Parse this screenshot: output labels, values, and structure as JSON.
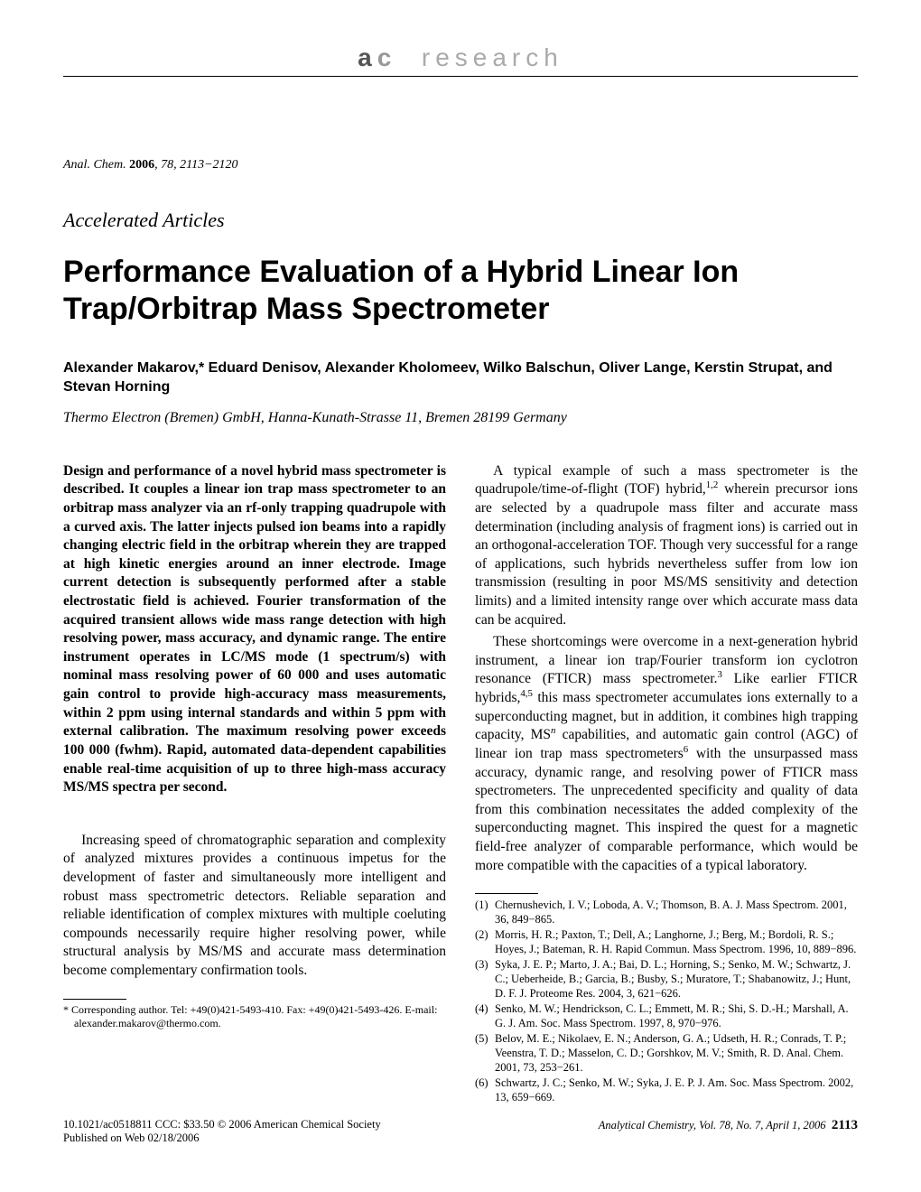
{
  "header": {
    "brand_a": "a",
    "brand_c": "c",
    "brand_research": "research"
  },
  "citation": {
    "journal": "Anal. Chem.",
    "year": "2006",
    "volume": "78",
    "pages": "2113−2120"
  },
  "section_label": "Accelerated Articles",
  "title": "Performance Evaluation of a Hybrid Linear Ion Trap/Orbitrap Mass Spectrometer",
  "authors": "Alexander Makarov,* Eduard Denisov, Alexander Kholomeev, Wilko Balschun, Oliver Lange, Kerstin Strupat, and Stevan Horning",
  "affiliation": "Thermo Electron (Bremen) GmbH, Hanna-Kunath-Strasse 11, Bremen 28199 Germany",
  "abstract": "Design and performance of a novel hybrid mass spectrometer is described. It couples a linear ion trap mass spectrometer to an orbitrap mass analyzer via an rf-only trapping quadrupole with a curved axis. The latter injects pulsed ion beams into a rapidly changing electric field in the orbitrap wherein they are trapped at high kinetic energies around an inner electrode. Image current detection is subsequently performed after a stable electrostatic field is achieved. Fourier transformation of the acquired transient allows wide mass range detection with high resolving power, mass accuracy, and dynamic range. The entire instrument operates in LC/MS mode (1 spectrum/s) with nominal mass resolving power of 60 000 and uses automatic gain control to provide high-accuracy mass measurements, within 2 ppm using internal standards and within 5 ppm with external calibration. The maximum resolving power exceeds 100 000 (fwhm). Rapid, automated data-dependent capabilities enable real-time acquisition of up to three high-mass accuracy MS/MS spectra per second.",
  "intro_para": "Increasing speed of chromatographic separation and complexity of analyzed mixtures provides a continuous impetus for the development of faster and simultaneously more intelligent and robust mass spectrometric detectors. Reliable separation and reliable identification of complex mixtures with multiple coeluting compounds necessarily require higher resolving power, while structural analysis by MS/MS and accurate mass determination become complementary confirmation tools.",
  "corresponding": "* Corresponding author. Tel: +49(0)421-5493-410. Fax: +49(0)421-5493-426. E-mail: alexander.makarov@thermo.com.",
  "right_p1_a": "A typical example of such a mass spectrometer is the quadrupole/time-of-flight (TOF) hybrid,",
  "right_p1_sup1": "1,2",
  "right_p1_b": " wherein precursor ions are selected by a quadrupole mass filter and accurate mass determination (including analysis of fragment ions) is carried out in an orthogonal-acceleration TOF. Though very successful for a range of applications, such hybrids nevertheless suffer from low ion transmission (resulting in poor MS/MS sensitivity and detection limits) and a limited intensity range over which accurate mass data can be acquired.",
  "right_p2_a": "These shortcomings were overcome in a next-generation hybrid instrument, a linear ion trap/Fourier transform ion cyclotron resonance (FTICR) mass spectrometer.",
  "right_p2_sup1": "3",
  "right_p2_b": " Like earlier FTICR hybrids,",
  "right_p2_sup2": "4,5",
  "right_p2_c": " this mass spectrometer accumulates ions externally to a superconducting magnet, but in addition, it combines high trapping capacity, MS",
  "right_p2_supn": "n",
  "right_p2_d": " capabilities, and automatic gain control (AGC) of linear ion trap mass spectrometers",
  "right_p2_sup3": "6",
  "right_p2_e": " with the unsurpassed mass accuracy, dynamic range, and resolving power of FTICR mass spectrometers. The unprecedented specificity and quality of data from this combination necessitates the added complexity of the superconducting magnet. This inspired the quest for a magnetic field-free analyzer of comparable performance, which would be more compatible with the capacities of a typical laboratory.",
  "refs": [
    {
      "n": "(1)",
      "t": "Chernushevich, I. V.; Loboda, A. V.; Thomson, B. A. J. Mass Spectrom. 2001, 36, 849−865."
    },
    {
      "n": "(2)",
      "t": "Morris, H. R.; Paxton, T.; Dell, A.; Langhorne, J.; Berg, M.; Bordoli, R. S.; Hoyes, J.; Bateman, R. H. Rapid Commun. Mass Spectrom. 1996, 10, 889−896."
    },
    {
      "n": "(3)",
      "t": "Syka, J. E. P.; Marto, J. A.; Bai, D. L.; Horning, S.; Senko, M. W.; Schwartz, J. C.; Ueberheide, B.; Garcia, B.; Busby, S.; Muratore, T.; Shabanowitz, J.; Hunt, D. F. J. Proteome Res. 2004, 3, 621−626."
    },
    {
      "n": "(4)",
      "t": "Senko, M. W.; Hendrickson, C. L.; Emmett, M. R.; Shi, S. D.-H.; Marshall, A. G. J. Am. Soc. Mass Spectrom. 1997, 8, 970−976."
    },
    {
      "n": "(5)",
      "t": "Belov, M. E.; Nikolaev, E. N.; Anderson, G. A.; Udseth, H. R.; Conrads, T. P.; Veenstra, T. D.; Masselon, C. D.; Gorshkov, M. V.; Smith, R. D. Anal. Chem. 2001, 73, 253−261."
    },
    {
      "n": "(6)",
      "t": "Schwartz, J. C.; Senko, M. W.; Syka, J. E. P. J. Am. Soc. Mass Spectrom. 2002, 13, 659−669."
    }
  ],
  "footer": {
    "left_line1": "10.1021/ac0518811 CCC: $33.50   © 2006 American Chemical Society",
    "left_line2": "Published on Web 02/18/2006",
    "right": "Analytical Chemistry, Vol. 78, No. 7, April 1, 2006",
    "page": "2113"
  }
}
